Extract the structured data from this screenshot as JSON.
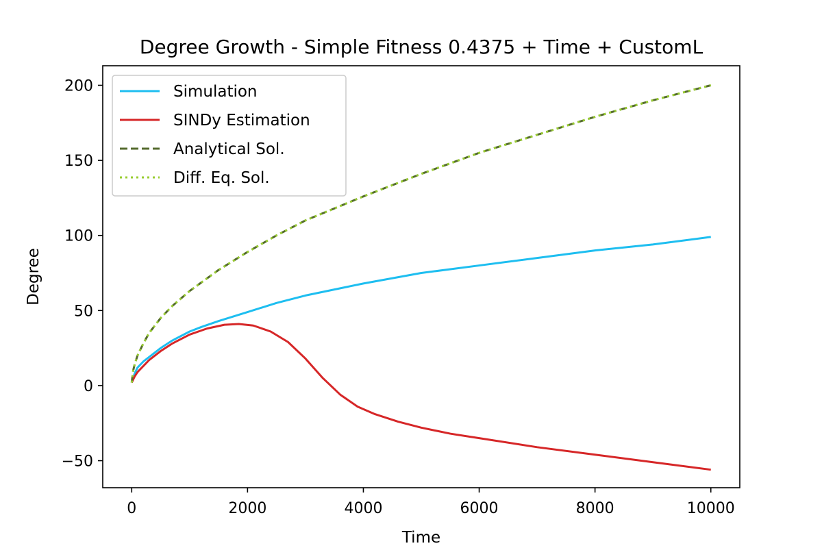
{
  "chart_data": {
    "type": "line",
    "title": "Degree Growth - Simple Fitness 0.4375 + Time + CustomL",
    "xlabel": "Time",
    "ylabel": "Degree",
    "xlim": [
      -500,
      10500
    ],
    "ylim": [
      -68,
      213
    ],
    "xticks": [
      0,
      2000,
      4000,
      6000,
      8000,
      10000
    ],
    "xtick_labels": [
      "0",
      "2000",
      "4000",
      "6000",
      "8000",
      "10000"
    ],
    "yticks": [
      -50,
      0,
      50,
      100,
      150,
      200
    ],
    "ytick_labels": [
      "−50",
      "0",
      "50",
      "100",
      "150",
      "200"
    ],
    "grid": false,
    "legend_position": "upper left",
    "series": [
      {
        "name": "Simulation",
        "color": "#1ebef0",
        "style": "solid",
        "x": [
          0,
          50,
          100,
          200,
          300,
          500,
          700,
          1000,
          1200,
          1500,
          2000,
          2500,
          3000,
          3500,
          4000,
          5000,
          6000,
          7000,
          8000,
          9000,
          10000
        ],
        "y": [
          2,
          8,
          12,
          16,
          19,
          25,
          30,
          36,
          39,
          43,
          49,
          55,
          60,
          64,
          68,
          75,
          80,
          85,
          90,
          94,
          99
        ]
      },
      {
        "name": "SINDy Estimation",
        "color": "#d62728",
        "style": "solid",
        "x": [
          0,
          50,
          100,
          200,
          300,
          500,
          700,
          1000,
          1300,
          1600,
          1850,
          2100,
          2400,
          2700,
          3000,
          3300,
          3600,
          3900,
          4200,
          4600,
          5000,
          5500,
          6000,
          7000,
          8000,
          9000,
          10000
        ],
        "y": [
          2,
          6,
          9,
          13,
          17,
          23,
          28,
          34,
          38,
          40.5,
          41,
          40,
          36,
          29,
          18,
          5,
          -6,
          -14,
          -19,
          -24,
          -28,
          -32,
          -35,
          -41,
          -46,
          -51,
          -56
        ]
      },
      {
        "name": "Analytical Sol.",
        "color": "#556b2f",
        "style": "dashed",
        "x": [
          0,
          25,
          50,
          100,
          200,
          300,
          500,
          700,
          1000,
          1500,
          2000,
          2500,
          3000,
          3500,
          4000,
          5000,
          6000,
          7000,
          8000,
          9000,
          10000
        ],
        "y": [
          2,
          10,
          14,
          20,
          28,
          35,
          45,
          53,
          63,
          77,
          89,
          100,
          110,
          118,
          126,
          141,
          155,
          167,
          179,
          190,
          200
        ]
      },
      {
        "name": "Diff. Eq. Sol.",
        "color": "#9acd32",
        "style": "dotted",
        "x": [
          0,
          25,
          50,
          100,
          200,
          300,
          500,
          700,
          1000,
          1500,
          2000,
          2500,
          3000,
          3500,
          4000,
          5000,
          6000,
          7000,
          8000,
          9000,
          10000
        ],
        "y": [
          2,
          10,
          14,
          20,
          28,
          35,
          45,
          53,
          63,
          77,
          89,
          100,
          110,
          118,
          126,
          141,
          155,
          167,
          179,
          190,
          200
        ]
      }
    ]
  }
}
